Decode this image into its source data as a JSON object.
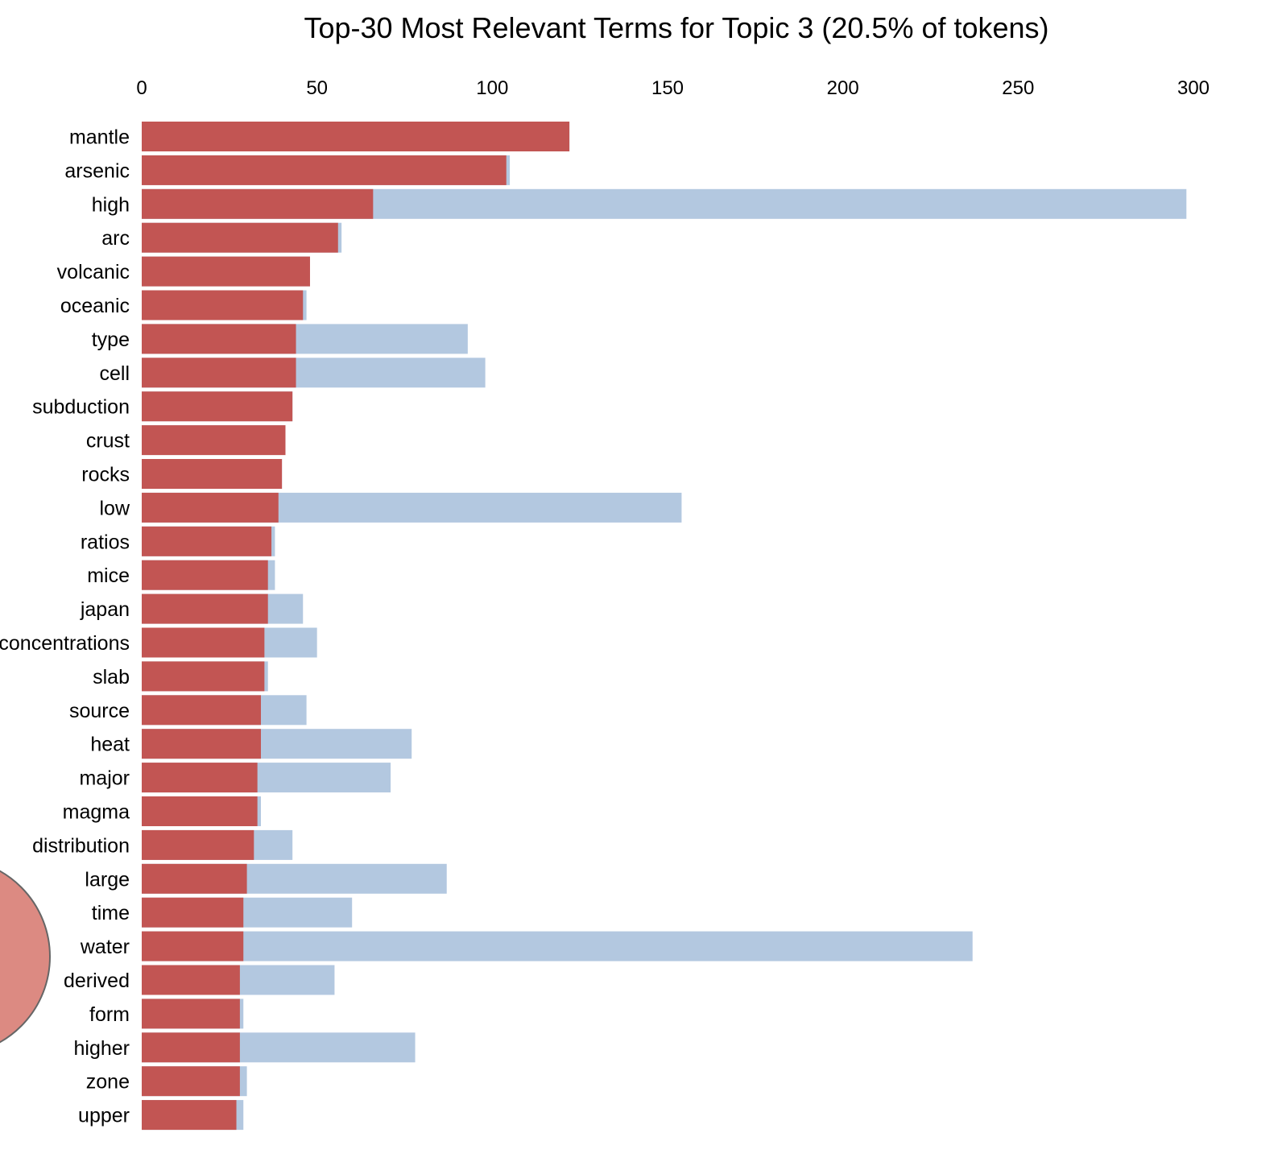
{
  "chart_data": {
    "type": "bar",
    "orientation": "horizontal",
    "title": "Top-30 Most Relevant Terms for Topic 3 (20.5% of tokens)",
    "xlabel": "",
    "ylabel": "",
    "xlim": [
      0,
      300
    ],
    "xticks": [
      0,
      50,
      100,
      150,
      200,
      250,
      300
    ],
    "axis_position": "top",
    "grid": false,
    "legend": "none",
    "categories": [
      "mantle",
      "arsenic",
      "high",
      "arc",
      "volcanic",
      "oceanic",
      "type",
      "cell",
      "subduction",
      "crust",
      "rocks",
      "low",
      "ratios",
      "mice",
      "japan",
      "concentrations",
      "slab",
      "source",
      "heat",
      "major",
      "magma",
      "distribution",
      "large",
      "time",
      "water",
      "derived",
      "form",
      "higher",
      "zone",
      "upper"
    ],
    "series": [
      {
        "role": "overall",
        "color": "#b3c8e0",
        "values": [
          122,
          105,
          298,
          57,
          48,
          47,
          93,
          98,
          43,
          41,
          40,
          154,
          38,
          38,
          46,
          50,
          36,
          47,
          77,
          71,
          34,
          43,
          87,
          60,
          237,
          55,
          29,
          78,
          30,
          29
        ]
      },
      {
        "role": "topic",
        "color": "#c25553",
        "values": [
          122,
          104,
          66,
          56,
          48,
          46,
          44,
          44,
          43,
          41,
          40,
          39,
          37,
          36,
          36,
          35,
          35,
          34,
          34,
          33,
          33,
          32,
          30,
          29,
          29,
          28,
          28,
          28,
          28,
          27
        ]
      }
    ]
  },
  "decor": {
    "circle_fill": "#dc8a82",
    "circle_stroke": "#666666"
  }
}
